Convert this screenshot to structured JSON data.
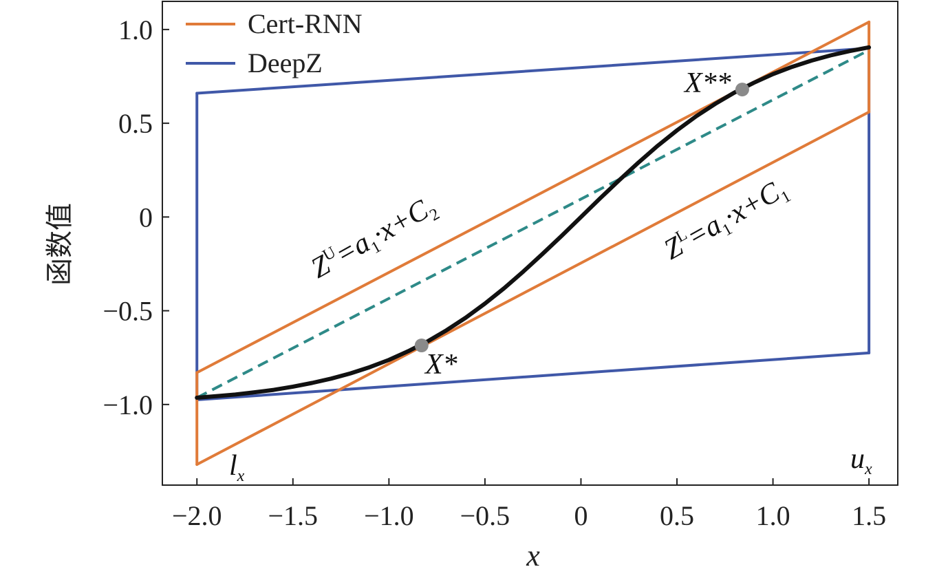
{
  "chart_data": {
    "type": "line",
    "title": "",
    "xlabel": "x",
    "ylabel": "函数值",
    "xlim": [
      -2.18,
      1.65
    ],
    "ylim": [
      -1.43,
      1.15
    ],
    "x_ticks": [
      -2.0,
      -1.5,
      -1.0,
      -0.5,
      0,
      0.5,
      1.0,
      1.5
    ],
    "x_tick_labels": [
      "−2.0",
      "−1.5",
      "−1.0",
      "−0.5",
      "0",
      "0.5",
      "1.0",
      "1.5"
    ],
    "y_ticks": [
      1.0,
      0.5,
      0,
      -0.5,
      -1.0
    ],
    "y_tick_labels": [
      "1.0",
      "0.5",
      "0",
      "−0.5",
      "−1.0"
    ],
    "grid": false,
    "legend_position": "top-left",
    "colors": {
      "cert_rnn": "#e07b39",
      "deepz": "#4058a8",
      "function": "#111111",
      "secant": "#2e8a88",
      "point": "#8a8a8a"
    },
    "series": [
      {
        "name": "Cert-RNN",
        "segments": [
          [
            [
              -2.0,
              -0.83
            ],
            [
              1.5,
              1.04
            ]
          ],
          [
            [
              -2.0,
              -1.32
            ],
            [
              1.5,
              0.56
            ]
          ],
          [
            [
              -2.0,
              -1.32
            ],
            [
              -2.0,
              -0.83
            ]
          ],
          [
            [
              1.5,
              0.56
            ],
            [
              1.5,
              1.04
            ]
          ]
        ]
      },
      {
        "name": "DeepZ",
        "segments": [
          [
            [
              -2.0,
              0.66
            ],
            [
              1.5,
              0.9
            ]
          ],
          [
            [
              -2.0,
              -0.975
            ],
            [
              1.5,
              -0.725
            ]
          ],
          [
            [
              -2.0,
              -0.975
            ],
            [
              -2.0,
              0.66
            ]
          ],
          [
            [
              1.5,
              -0.725
            ],
            [
              1.5,
              0.9
            ]
          ]
        ]
      }
    ],
    "function_curve": {
      "x": [
        -2.0,
        -1.9,
        -1.8,
        -1.7,
        -1.6,
        -1.5,
        -1.4,
        -1.3,
        -1.2,
        -1.1,
        -1.0,
        -0.9,
        -0.8,
        -0.7,
        -0.6,
        -0.5,
        -0.4,
        -0.3,
        -0.2,
        -0.1,
        0.0,
        0.1,
        0.2,
        0.3,
        0.4,
        0.5,
        0.6,
        0.7,
        0.8,
        0.9,
        1.0,
        1.1,
        1.2,
        1.3,
        1.4,
        1.5
      ],
      "y": [
        -0.964,
        -0.956,
        -0.947,
        -0.935,
        -0.922,
        -0.905,
        -0.885,
        -0.862,
        -0.834,
        -0.801,
        -0.762,
        -0.716,
        -0.664,
        -0.604,
        -0.537,
        -0.462,
        -0.38,
        -0.291,
        -0.197,
        -0.1,
        0.0,
        0.1,
        0.197,
        0.291,
        0.38,
        0.462,
        0.537,
        0.604,
        0.664,
        0.716,
        0.762,
        0.801,
        0.834,
        0.862,
        0.885,
        0.905
      ]
    },
    "secant_line": [
      [
        -2.0,
        -0.964
      ],
      [
        1.5,
        0.89
      ]
    ],
    "points": [
      {
        "label": "X*",
        "x": -0.83,
        "y": -0.685
      },
      {
        "label": "X**",
        "x": 0.84,
        "y": 0.68
      }
    ],
    "annotations": {
      "upper_bound": {
        "main": "Z",
        "sup": "U",
        "mid": "=a",
        "sub1": "1",
        "rest": "·x+C",
        "sub2": "2"
      },
      "lower_bound": {
        "main": "Z",
        "sup": "L",
        "mid": "=a",
        "sub1": "1",
        "rest": "·x+C",
        "sub2": "1"
      },
      "lx": {
        "main": "l",
        "sub": "x"
      },
      "ux": {
        "main": "u",
        "sub": "x"
      }
    }
  }
}
